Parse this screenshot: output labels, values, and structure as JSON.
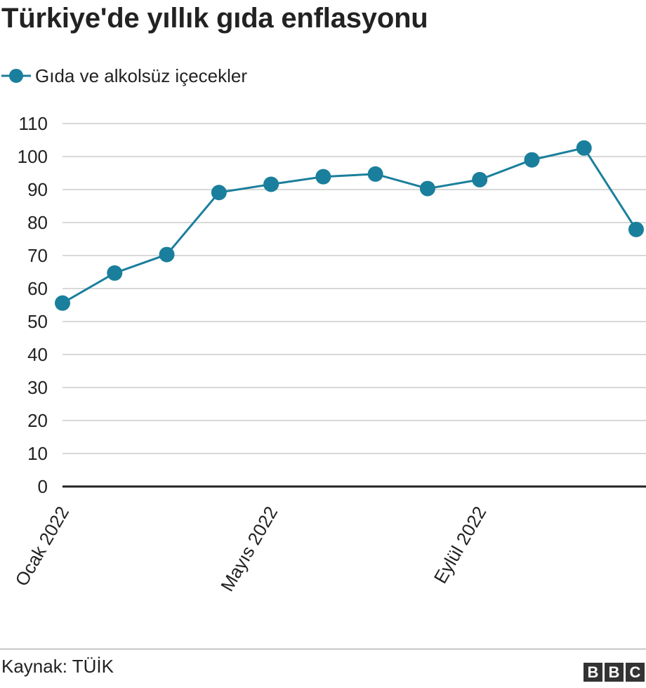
{
  "title": "Türkiye'de yıllık gıda enflasyonu",
  "legend": {
    "label": "Gıda ve alkolsüz içecekler"
  },
  "footer": {
    "source": "Kaynak: TÜİK",
    "logo_text": "BBC"
  },
  "colors": {
    "series": "#1a7f9c",
    "grid": "#cccccc",
    "axis": "#222222",
    "text": "#222222"
  },
  "chart_data": {
    "type": "line",
    "title": "Türkiye'de yıllık gıda enflasyonu",
    "xlabel": "",
    "ylabel": "",
    "x": [
      "2022-01",
      "2022-02",
      "2022-03",
      "2022-04",
      "2022-05",
      "2022-06",
      "2022-07",
      "2022-08",
      "2022-09",
      "2022-10",
      "2022-11",
      "2022-12"
    ],
    "x_tick_labels": [
      {
        "x": "2022-01",
        "label": "Ocak 2022"
      },
      {
        "x": "2022-05",
        "label": "Mayıs 2022"
      },
      {
        "x": "2022-09",
        "label": "Eylül 2022"
      }
    ],
    "series": [
      {
        "name": "Gıda ve alkolsüz içecekler",
        "values": [
          55.6,
          64.7,
          70.3,
          89.1,
          91.6,
          93.9,
          94.7,
          90.3,
          93.0,
          99.0,
          102.6,
          77.9
        ]
      }
    ],
    "ylim": [
      0,
      110
    ],
    "yticks": [
      0,
      10,
      20,
      30,
      40,
      50,
      60,
      70,
      80,
      90,
      100,
      110
    ],
    "grid": true,
    "legend_position": "top-left",
    "markers": true
  }
}
